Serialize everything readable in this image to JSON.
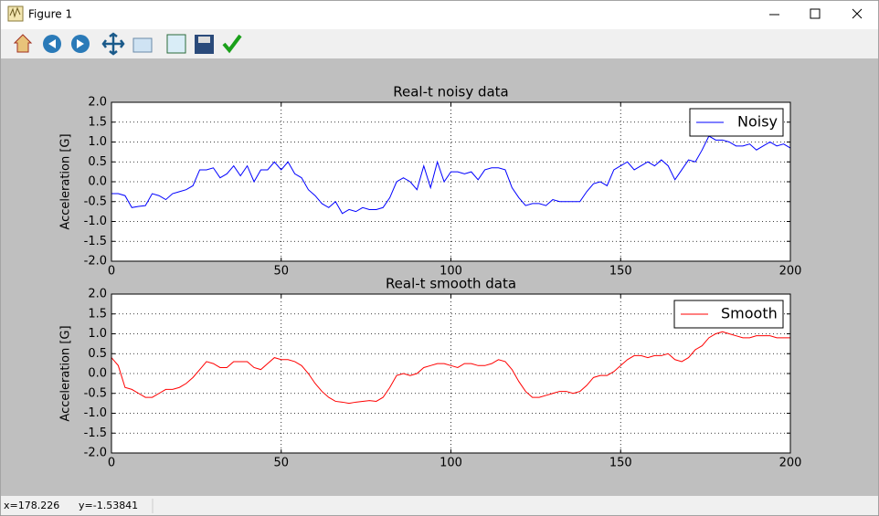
{
  "window": {
    "title": "Figure 1"
  },
  "status": {
    "x": "x=178.226",
    "y": "y=-1.53841"
  },
  "chart_data": [
    {
      "type": "line",
      "title": "Real-t noisy data",
      "ylabel": "Acceleration [G]",
      "x": [
        0,
        2,
        4,
        6,
        8,
        10,
        12,
        14,
        16,
        18,
        20,
        22,
        24,
        26,
        28,
        30,
        32,
        34,
        36,
        38,
        40,
        42,
        44,
        46,
        48,
        50,
        52,
        54,
        56,
        58,
        60,
        62,
        64,
        66,
        68,
        70,
        72,
        74,
        76,
        78,
        80,
        82,
        84,
        86,
        88,
        90,
        92,
        94,
        96,
        98,
        100,
        102,
        104,
        106,
        108,
        110,
        112,
        114,
        116,
        118,
        120,
        122,
        124,
        126,
        128,
        130,
        132,
        134,
        136,
        138,
        140,
        142,
        144,
        146,
        148,
        150,
        152,
        154,
        156,
        158,
        160,
        162,
        164,
        166,
        168,
        170,
        172,
        174,
        176,
        178,
        180,
        182,
        184,
        186,
        188,
        190,
        192,
        194,
        196,
        198,
        200
      ],
      "series": [
        {
          "name": "Noisy",
          "color": "#0000ff",
          "values": [
            -0.3,
            -0.3,
            -0.35,
            -0.65,
            -0.62,
            -0.6,
            -0.3,
            -0.35,
            -0.45,
            -0.3,
            -0.25,
            -0.2,
            -0.1,
            0.3,
            0.3,
            0.35,
            0.1,
            0.2,
            0.4,
            0.15,
            0.4,
            0.0,
            0.3,
            0.3,
            0.5,
            0.3,
            0.5,
            0.2,
            0.1,
            -0.2,
            -0.35,
            -0.55,
            -0.65,
            -0.5,
            -0.8,
            -0.7,
            -0.75,
            -0.65,
            -0.7,
            -0.7,
            -0.65,
            -0.4,
            0.0,
            0.1,
            0.0,
            -0.2,
            0.4,
            -0.15,
            0.5,
            0.0,
            0.25,
            0.25,
            0.2,
            0.25,
            0.05,
            0.3,
            0.35,
            0.35,
            0.3,
            -0.15,
            -0.4,
            -0.6,
            -0.55,
            -0.55,
            -0.6,
            -0.45,
            -0.5,
            -0.5,
            -0.5,
            -0.5,
            -0.25,
            -0.05,
            0.0,
            -0.1,
            0.3,
            0.4,
            0.5,
            0.3,
            0.4,
            0.5,
            0.4,
            0.55,
            0.4,
            0.05,
            0.3,
            0.55,
            0.5,
            0.8,
            1.15,
            1.05,
            1.05,
            1.0,
            0.9,
            0.9,
            0.95,
            0.8,
            0.9,
            1.0,
            0.9,
            0.95,
            0.85
          ]
        }
      ],
      "xlim": [
        0,
        200
      ],
      "xticks": [
        0,
        50,
        100,
        150,
        200
      ],
      "ylim": [
        -2,
        2
      ],
      "yticks": [
        {
          "value": -2,
          "label": "-2.0"
        },
        {
          "value": -1.5,
          "label": "-1.5"
        },
        {
          "value": -1,
          "label": "-1.0"
        },
        {
          "value": -0.5,
          "label": "-0.5"
        },
        {
          "value": 0,
          "label": "0.0"
        },
        {
          "value": 0.5,
          "label": "0.5"
        },
        {
          "value": 1,
          "label": "1.0"
        },
        {
          "value": 1.5,
          "label": "1.5"
        },
        {
          "value": 2,
          "label": "2.0"
        }
      ],
      "grid": true,
      "legend": "upper right"
    },
    {
      "type": "line",
      "title": "Real-t smooth data",
      "ylabel": "Acceleration [G]",
      "x": [
        0,
        2,
        4,
        6,
        8,
        10,
        12,
        14,
        16,
        18,
        20,
        22,
        24,
        26,
        28,
        30,
        32,
        34,
        36,
        38,
        40,
        42,
        44,
        46,
        48,
        50,
        52,
        54,
        56,
        58,
        60,
        62,
        64,
        66,
        68,
        70,
        72,
        74,
        76,
        78,
        80,
        82,
        84,
        86,
        88,
        90,
        92,
        94,
        96,
        98,
        100,
        102,
        104,
        106,
        108,
        110,
        112,
        114,
        116,
        118,
        120,
        122,
        124,
        126,
        128,
        130,
        132,
        134,
        136,
        138,
        140,
        142,
        144,
        146,
        148,
        150,
        152,
        154,
        156,
        158,
        160,
        162,
        164,
        166,
        168,
        170,
        172,
        174,
        176,
        178,
        180,
        182,
        184,
        186,
        188,
        190,
        192,
        194,
        196,
        198,
        200
      ],
      "series": [
        {
          "name": "Smooth",
          "color": "#ff0000",
          "values": [
            0.4,
            0.2,
            -0.35,
            -0.4,
            -0.5,
            -0.6,
            -0.6,
            -0.5,
            -0.4,
            -0.4,
            -0.35,
            -0.25,
            -0.1,
            0.1,
            0.3,
            0.25,
            0.15,
            0.15,
            0.3,
            0.3,
            0.3,
            0.15,
            0.1,
            0.25,
            0.4,
            0.35,
            0.35,
            0.3,
            0.2,
            0.0,
            -0.25,
            -0.45,
            -0.6,
            -0.7,
            -0.72,
            -0.75,
            -0.72,
            -0.7,
            -0.68,
            -0.7,
            -0.6,
            -0.35,
            -0.05,
            0.0,
            -0.05,
            0.0,
            0.15,
            0.2,
            0.25,
            0.25,
            0.2,
            0.15,
            0.25,
            0.25,
            0.2,
            0.2,
            0.25,
            0.35,
            0.3,
            0.1,
            -0.2,
            -0.45,
            -0.6,
            -0.6,
            -0.55,
            -0.5,
            -0.45,
            -0.45,
            -0.5,
            -0.45,
            -0.3,
            -0.1,
            -0.05,
            -0.05,
            0.05,
            0.2,
            0.35,
            0.45,
            0.45,
            0.4,
            0.45,
            0.45,
            0.5,
            0.35,
            0.3,
            0.4,
            0.6,
            0.7,
            0.9,
            1.0,
            1.05,
            1.0,
            0.95,
            0.9,
            0.9,
            0.95,
            0.95,
            0.95,
            0.9,
            0.9,
            0.9
          ]
        }
      ],
      "xlim": [
        0,
        200
      ],
      "xticks": [
        0,
        50,
        100,
        150,
        200
      ],
      "ylim": [
        -2,
        2
      ],
      "yticks": [
        {
          "value": -2,
          "label": "-2.0"
        },
        {
          "value": -1.5,
          "label": "-1.5"
        },
        {
          "value": -1,
          "label": "-1.0"
        },
        {
          "value": -0.5,
          "label": "-0.5"
        },
        {
          "value": 0,
          "label": "0.0"
        },
        {
          "value": 0.5,
          "label": "0.5"
        },
        {
          "value": 1,
          "label": "1.0"
        },
        {
          "value": 1.5,
          "label": "1.5"
        },
        {
          "value": 2,
          "label": "2.0"
        }
      ],
      "grid": true,
      "legend": "upper right"
    }
  ]
}
